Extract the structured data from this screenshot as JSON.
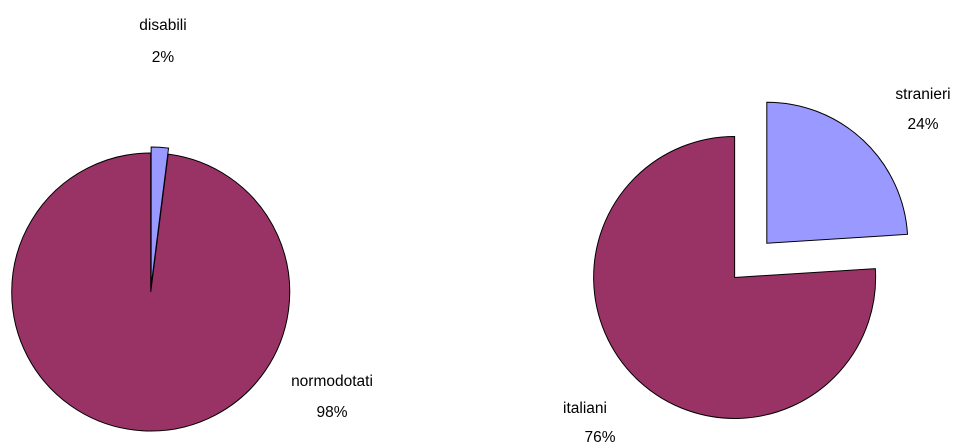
{
  "colors": {
    "majority": "#993366",
    "minority": "#9999ff",
    "stroke": "#000000",
    "background": "#ffffff"
  },
  "chart_data": [
    {
      "type": "pie",
      "title": "",
      "exploded": true,
      "slices": [
        {
          "name": "disabili",
          "value": 2,
          "label": "2%",
          "color": "#9999ff"
        },
        {
          "name": "normodotati",
          "value": 98,
          "label": "98%",
          "color": "#993366"
        }
      ]
    },
    {
      "type": "pie",
      "title": "",
      "exploded": true,
      "slices": [
        {
          "name": "stranieri",
          "value": 24,
          "label": "24%",
          "color": "#9999ff"
        },
        {
          "name": "italiani",
          "value": 76,
          "label": "76%",
          "color": "#993366"
        }
      ]
    }
  ]
}
